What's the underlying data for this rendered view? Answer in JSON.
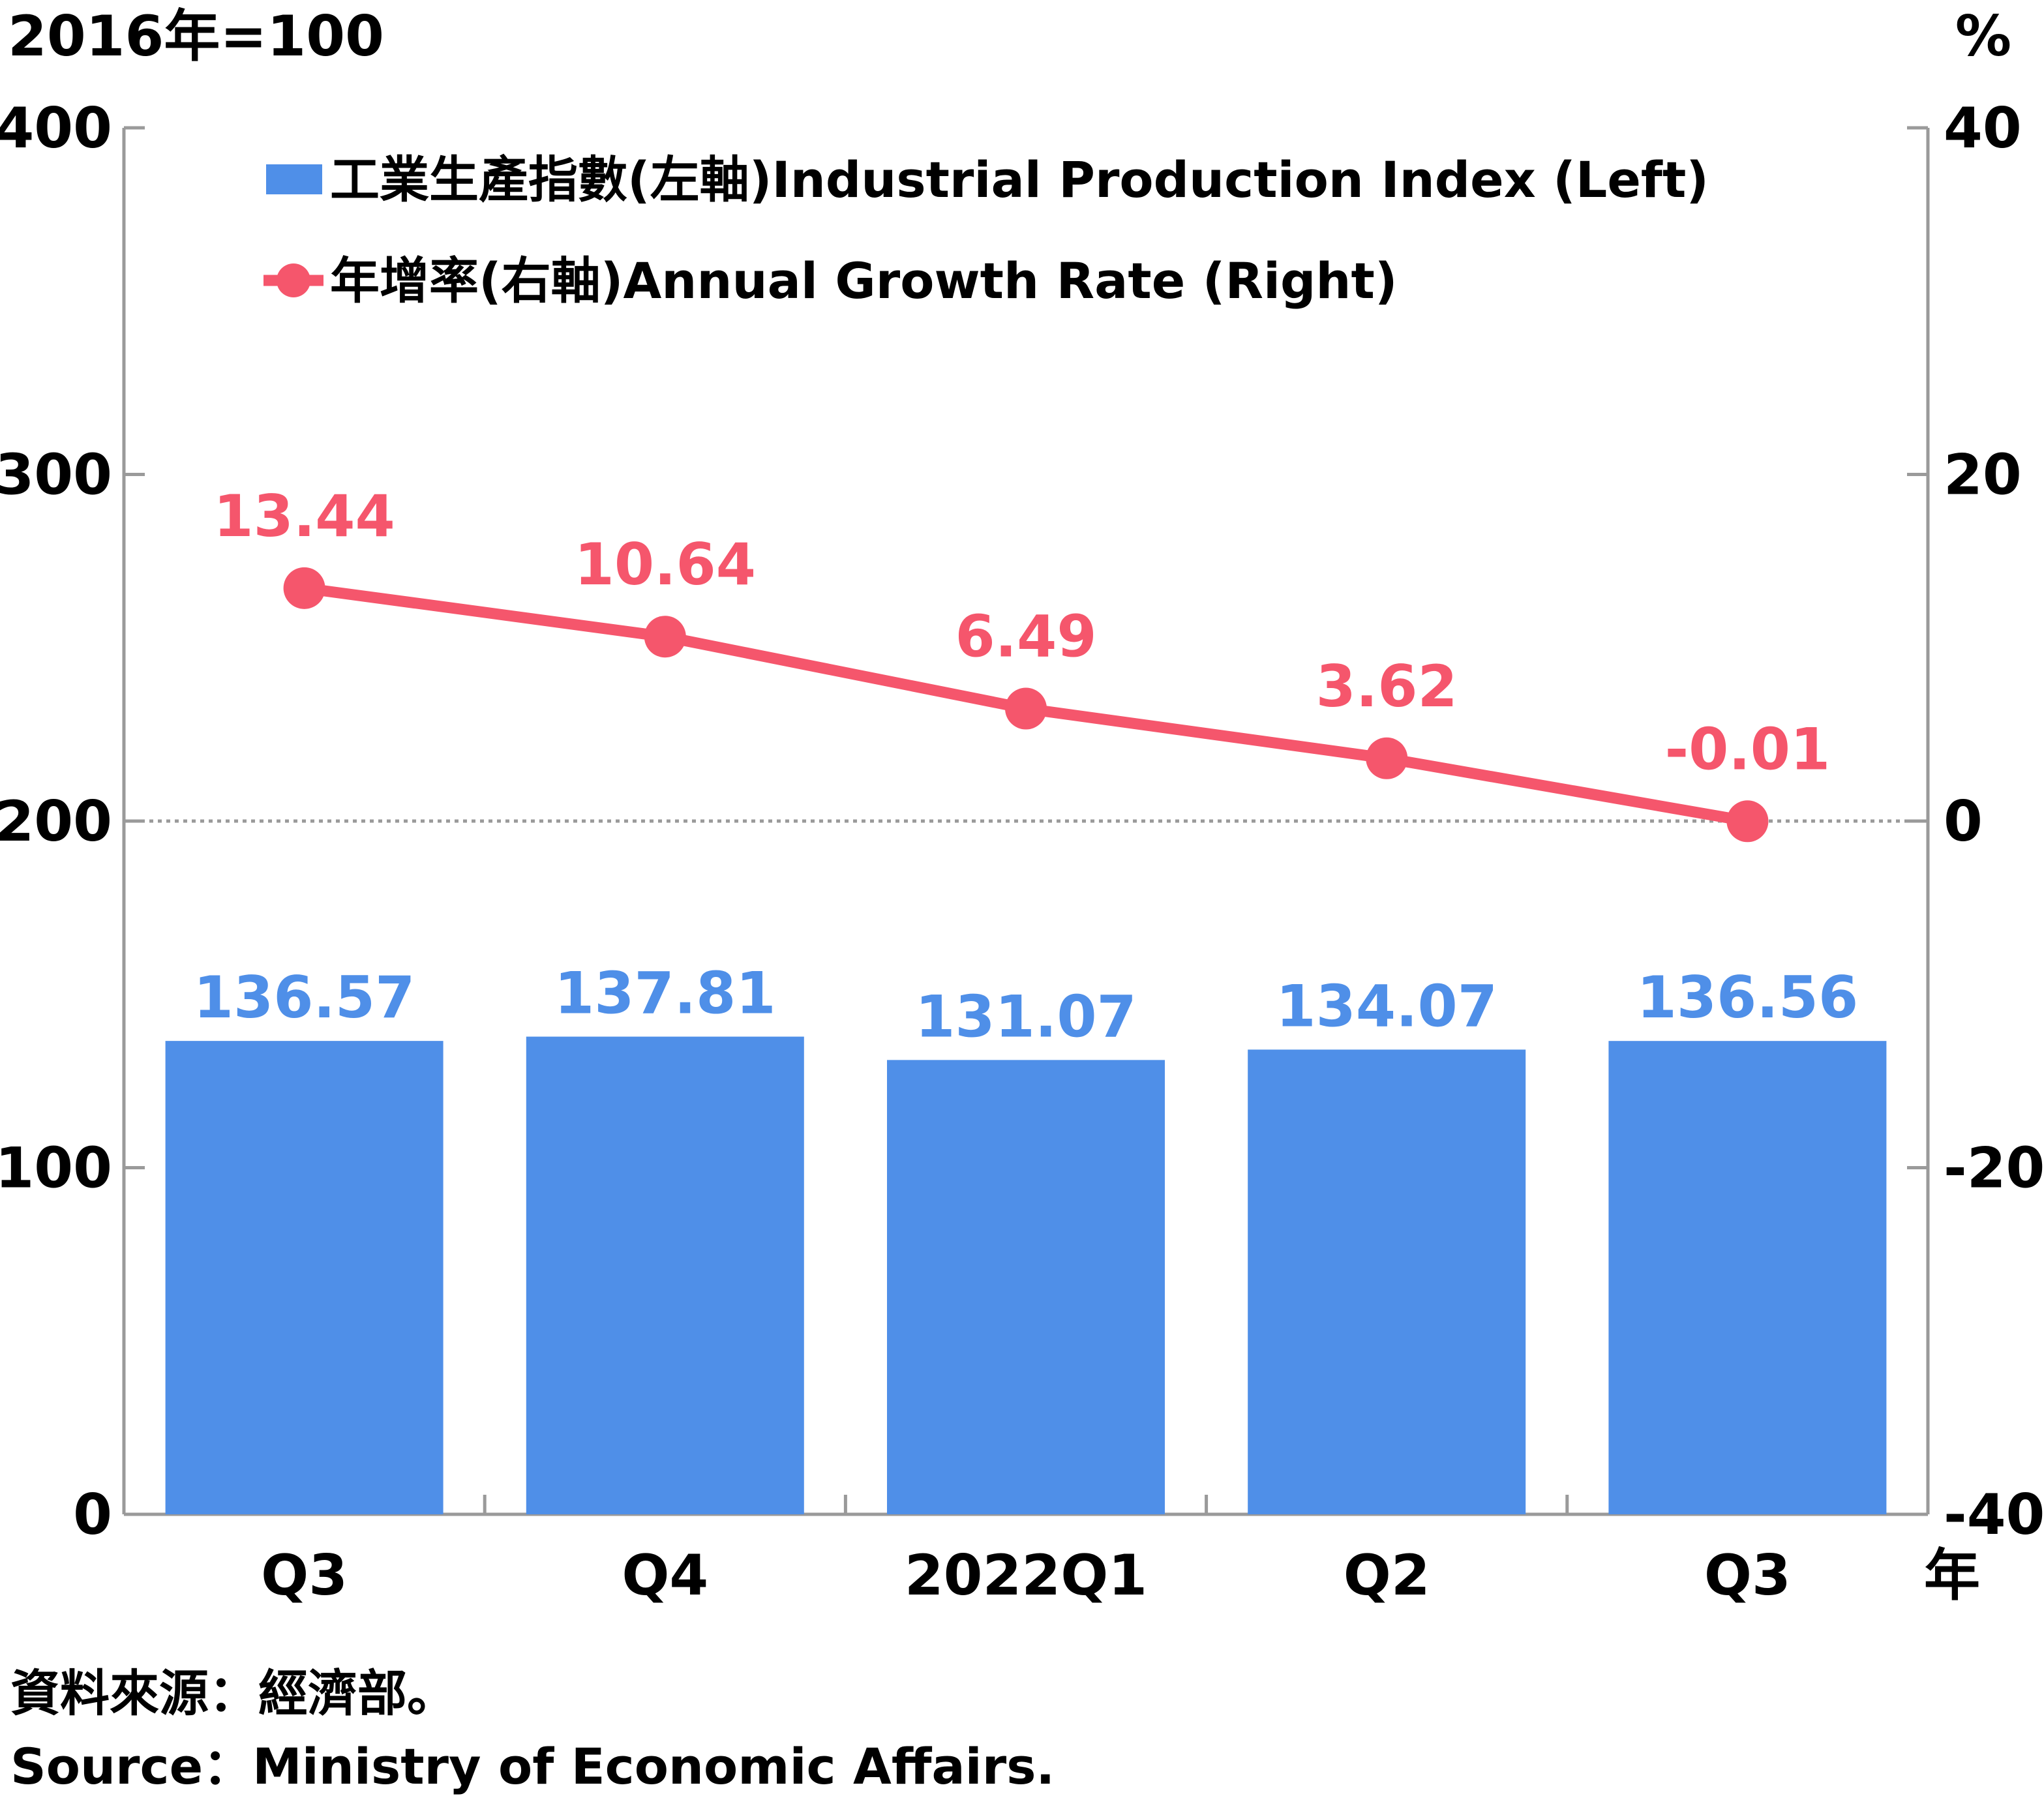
{
  "chart_data": {
    "type": "bar",
    "categories": [
      "Q3",
      "Q4",
      "2022Q1",
      "Q2",
      "Q3"
    ],
    "x_axis_suffix": "年",
    "left_axis": {
      "unit_label": "2016年=100",
      "ticks": [
        0,
        100,
        200,
        300,
        400
      ],
      "ylim": [
        0,
        400
      ]
    },
    "right_axis": {
      "unit_label": "%",
      "ticks": [
        -40,
        -20,
        0,
        20,
        40
      ],
      "ylim": [
        -40,
        40
      ]
    },
    "zero_reference_line": {
      "axis": "right",
      "value": 0,
      "style": "dotted"
    },
    "series": [
      {
        "name": "工業生產指數(左軸)Industrial Production Index (Left)",
        "type": "bar",
        "axis": "left",
        "color": "#4f8fe8",
        "values": [
          136.57,
          137.81,
          131.07,
          134.07,
          136.56
        ],
        "labels": [
          "136.57",
          "137.81",
          "131.07",
          "134.07",
          "136.56"
        ]
      },
      {
        "name": "年增率(右軸)Annual Growth Rate (Right)",
        "type": "line",
        "axis": "right",
        "color": "#f5566c",
        "values": [
          13.44,
          10.64,
          6.49,
          3.62,
          -0.01
        ],
        "labels": [
          "13.44",
          "10.64",
          "6.49",
          "3.62",
          "-0.01"
        ]
      }
    ],
    "legend_position": "top-left"
  },
  "source": {
    "zh": "資料來源：經濟部。",
    "en": "Source：Ministry of Economic Affairs."
  }
}
